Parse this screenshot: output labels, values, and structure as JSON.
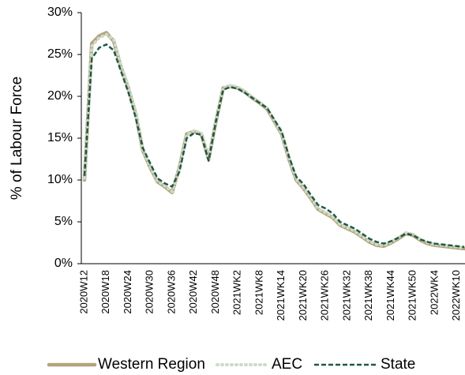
{
  "chart_data": {
    "type": "line",
    "y_label": "% of Labour Force",
    "categories": [
      "2020W12",
      null,
      null,
      "2020W18",
      null,
      null,
      "2020W24",
      null,
      null,
      "2020W30",
      null,
      null,
      "2020W36",
      null,
      null,
      "2020W42",
      null,
      null,
      "2020W48",
      null,
      null,
      "2021WK2",
      null,
      null,
      "2021WK8",
      null,
      null,
      "2021WK14",
      null,
      null,
      "2021WK20",
      null,
      null,
      "2021WK26",
      null,
      null,
      "2021WK32",
      null,
      null,
      "2021WK38",
      null,
      null,
      "2021WK44",
      null,
      null,
      "2021WK50",
      null,
      null,
      "2022WK4",
      null,
      null,
      "2022WK10",
      null
    ],
    "series": [
      {
        "name": "Western Region",
        "color": "#b5a27a",
        "style": "solid",
        "values": [
          10,
          26.3,
          27.2,
          27.6,
          26.6,
          23.5,
          21,
          18,
          13.5,
          11.5,
          9.8,
          9.2,
          8.5,
          11.5,
          15.5,
          15.8,
          15.5,
          12.5,
          17,
          21,
          21.2,
          21,
          20.5,
          19.8,
          19.2,
          18.5,
          17,
          15.5,
          12.5,
          10,
          9,
          7.8,
          6.5,
          6,
          5.5,
          4.6,
          4.2,
          3.8,
          3.2,
          2.6,
          2.2,
          2.1,
          2.5,
          3,
          3.6,
          3.4,
          2.8,
          2.4,
          2.2,
          2.1,
          2,
          1.9,
          1.8
        ]
      },
      {
        "name": "AEC",
        "color": "#cddbc9",
        "style": "dotted",
        "values": [
          10.2,
          26,
          27,
          27.4,
          26.8,
          23.7,
          21.2,
          18.2,
          13.6,
          11.6,
          9.9,
          9.3,
          8.6,
          11.4,
          15.4,
          15.9,
          15.6,
          12.6,
          17.1,
          21,
          21.3,
          21.1,
          20.6,
          19.9,
          19.3,
          18.6,
          17.1,
          15.6,
          12.6,
          10.1,
          9.1,
          7.9,
          6.6,
          6.1,
          5.6,
          4.7,
          4.3,
          3.9,
          3.3,
          2.7,
          2.3,
          2.2,
          2.6,
          3.1,
          3.7,
          3.5,
          2.9,
          2.5,
          2.3,
          2.2,
          2.1,
          2,
          1.9
        ]
      },
      {
        "name": "State",
        "color": "#1d5a45",
        "style": "dashed",
        "values": [
          10.5,
          24.5,
          25.8,
          26.2,
          25.5,
          23,
          20.5,
          17.5,
          13.8,
          12,
          10.2,
          9.6,
          9.2,
          11,
          15,
          15.6,
          15.4,
          12.3,
          17,
          20.8,
          21.1,
          20.9,
          20.4,
          19.8,
          19.2,
          18.6,
          17.2,
          15.8,
          12.8,
          10.4,
          9.5,
          8.2,
          7,
          6.6,
          6,
          5,
          4.6,
          4.2,
          3.6,
          3,
          2.6,
          2.4,
          2.7,
          3.1,
          3.6,
          3.4,
          2.9,
          2.6,
          2.4,
          2.3,
          2.2,
          2.1,
          2.0
        ]
      }
    ],
    "ylim": [
      0,
      30
    ],
    "yticks": [
      {
        "value": 0,
        "label": "0%"
      },
      {
        "value": 5,
        "label": "5%"
      },
      {
        "value": 10,
        "label": "10%"
      },
      {
        "value": 15,
        "label": "15%"
      },
      {
        "value": 20,
        "label": "20%"
      },
      {
        "value": 25,
        "label": "25%"
      },
      {
        "value": 30,
        "label": "30%"
      }
    ],
    "grid": false,
    "legend": "bottom"
  }
}
